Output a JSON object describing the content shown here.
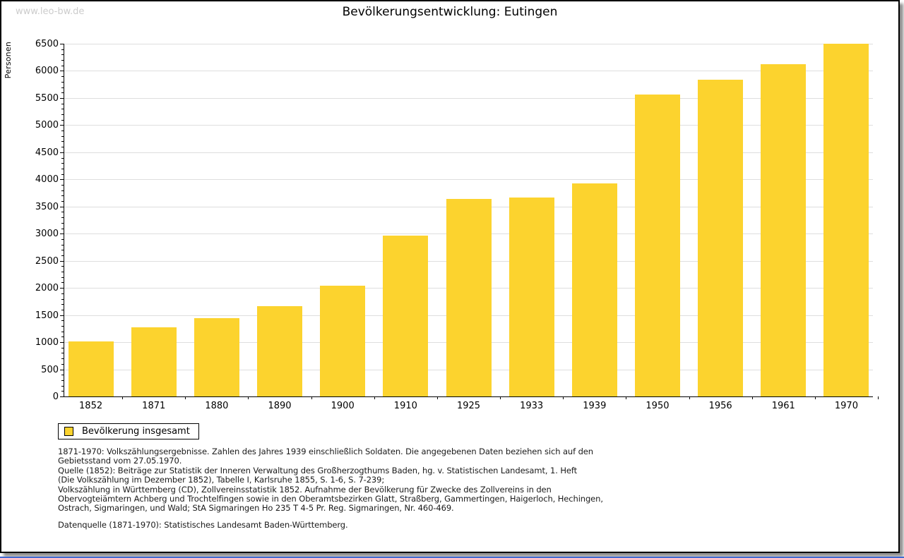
{
  "watermark": "www.leo-bw.de",
  "chart_data": {
    "type": "bar",
    "title": "Bevölkerungsentwicklung: Eutingen",
    "ylabel": "Personen",
    "xlabel": "",
    "categories": [
      "1852",
      "1871",
      "1880",
      "1890",
      "1900",
      "1910",
      "1925",
      "1933",
      "1939",
      "1950",
      "1956",
      "1961",
      "1970"
    ],
    "values": [
      1010,
      1280,
      1445,
      1660,
      2045,
      2970,
      3645,
      3670,
      3920,
      5565,
      5840,
      6120,
      6500
    ],
    "ylim": [
      0,
      6500
    ],
    "ytick_step": 500,
    "y_minor_tick_step": 100,
    "grid": "horizontal-major",
    "legend": {
      "label": "Bevölkerung insgesamt",
      "position": "bottom-left"
    },
    "bar_color": "#fcd32e"
  },
  "footer": {
    "lines": [
      "1871-1970: Volkszählungsergebnisse. Zahlen des Jahres 1939 einschließlich Soldaten. Die angegebenen Daten beziehen sich auf den",
      "Gebietsstand vom 27.05.1970.",
      "Quelle (1852): Beiträge zur Statistik der Inneren Verwaltung des Großherzogthums Baden, hg. v. Statistischen Landesamt, 1. Heft",
      "(Die Volkszählung im Dezember 1852), Tabelle I, Karlsruhe 1855, S. 1-6, S. 7-239;",
      "Volkszählung in Württemberg (CD), Zollvereinsstatistik 1852. Aufnahme der Bevölkerung für Zwecke des Zollvereins in den",
      "Obervogteiämtern Achberg und Trochtelfingen sowie in den Oberamtsbezirken Glatt, Straßberg, Gammertingen, Haigerloch, Hechingen,",
      "Ostrach, Sigmaringen, und Wald; StA Sigmaringen Ho 235 T 4-5 Pr. Reg. Sigmaringen, Nr. 460-469."
    ],
    "datasource": "Datenquelle (1871-1970): Statistisches Landesamt Baden-Württemberg."
  },
  "colors": {
    "bar": "#fcd32e",
    "gridline": "#dedede",
    "axis": "#000000",
    "watermark": "#cccccc",
    "shadow": "#8f8f8f",
    "bottom_strip": "#4169d1"
  }
}
